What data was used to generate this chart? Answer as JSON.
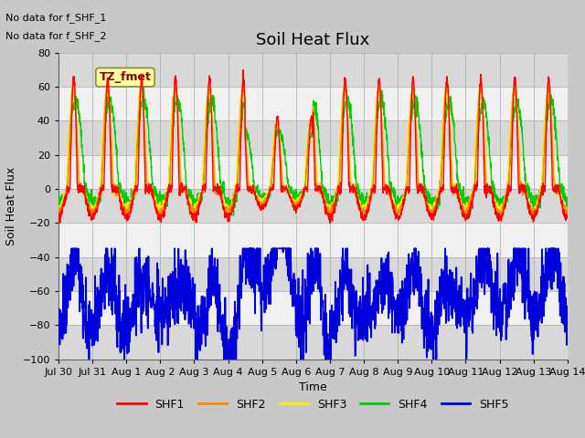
{
  "title": "Soil Heat Flux",
  "ylabel": "Soil Heat Flux",
  "xlabel": "Time",
  "ylim": [
    -100,
    80
  ],
  "yticks": [
    -100,
    -80,
    -60,
    -40,
    -20,
    0,
    20,
    40,
    60,
    80
  ],
  "xtick_labels": [
    "Jul 30",
    "Jul 31",
    "Aug 1",
    "Aug 2",
    "Aug 3",
    "Aug 4",
    "Aug 5",
    "Aug 6",
    "Aug 7",
    "Aug 8",
    "Aug 9",
    "Aug 10",
    "Aug 11",
    "Aug 12",
    "Aug 13",
    "Aug 14"
  ],
  "colors": {
    "SHF1": "#ff0000",
    "SHF2": "#ff8800",
    "SHF3": "#ffee00",
    "SHF4": "#00cc00",
    "SHF5": "#0000dd"
  },
  "annotation_texts": [
    "No data for f_SHF_1",
    "No data for f_SHF_2"
  ],
  "tz_label": "TZ_fmet",
  "tz_box_color": "#ffff99",
  "tz_box_edge": "#888844",
  "fig_facecolor": "#c8c8c8",
  "plot_bg_color": "#ffffff",
  "stripe_dark": "#d8d8d8",
  "stripe_light": "#f0f0f0",
  "n_points": 2016,
  "title_fontsize": 13,
  "label_fontsize": 9,
  "tick_fontsize": 8,
  "legend_fontsize": 9,
  "linewidth": 1.0,
  "shf5_linewidth": 1.3
}
